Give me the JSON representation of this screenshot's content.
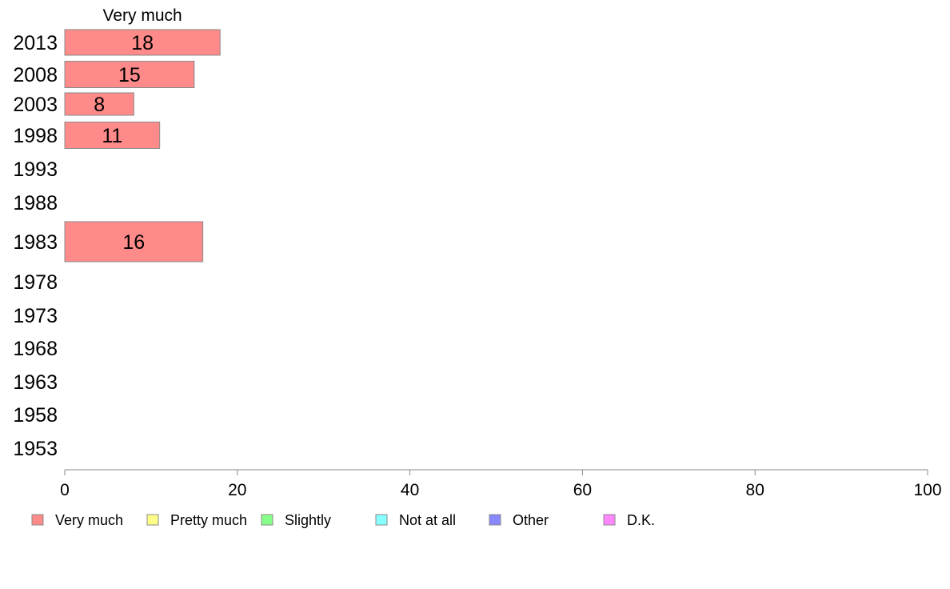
{
  "chart_data": {
    "type": "bar",
    "orientation": "horizontal",
    "stacked": true,
    "column_label": "Very much",
    "categories": [
      "2013",
      "2008",
      "2003",
      "1998",
      "1993",
      "1988",
      "1983",
      "1978",
      "1973",
      "1968",
      "1963",
      "1958",
      "1953"
    ],
    "series": [
      {
        "name": "Very much",
        "color": "#ff8a8a",
        "values": [
          18,
          15,
          8,
          11,
          null,
          null,
          16,
          null,
          null,
          null,
          null,
          null,
          null
        ]
      },
      {
        "name": "Pretty much",
        "color": "#ffff88",
        "values": [
          null,
          null,
          null,
          null,
          null,
          null,
          null,
          null,
          null,
          null,
          null,
          null,
          null
        ]
      },
      {
        "name": "Slightly",
        "color": "#88ff88",
        "values": [
          null,
          null,
          null,
          null,
          null,
          null,
          null,
          null,
          null,
          null,
          null,
          null,
          null
        ]
      },
      {
        "name": "Not at all",
        "color": "#88ffff",
        "values": [
          null,
          null,
          null,
          null,
          null,
          null,
          null,
          null,
          null,
          null,
          null,
          null,
          null
        ]
      },
      {
        "name": "Other",
        "color": "#8888ff",
        "values": [
          null,
          null,
          null,
          null,
          null,
          null,
          null,
          null,
          null,
          null,
          null,
          null,
          null
        ]
      },
      {
        "name": "D.K.",
        "color": "#ff88ff",
        "values": [
          null,
          null,
          null,
          null,
          null,
          null,
          null,
          null,
          null,
          null,
          null,
          null,
          null
        ]
      }
    ],
    "xlim": [
      0,
      100
    ],
    "xticks": [
      0,
      20,
      40,
      60,
      80,
      100
    ],
    "xtick_labels": [
      "0",
      "20",
      "40",
      "60",
      "80",
      "100"
    ],
    "grid": false,
    "legend_position": "bottom"
  }
}
